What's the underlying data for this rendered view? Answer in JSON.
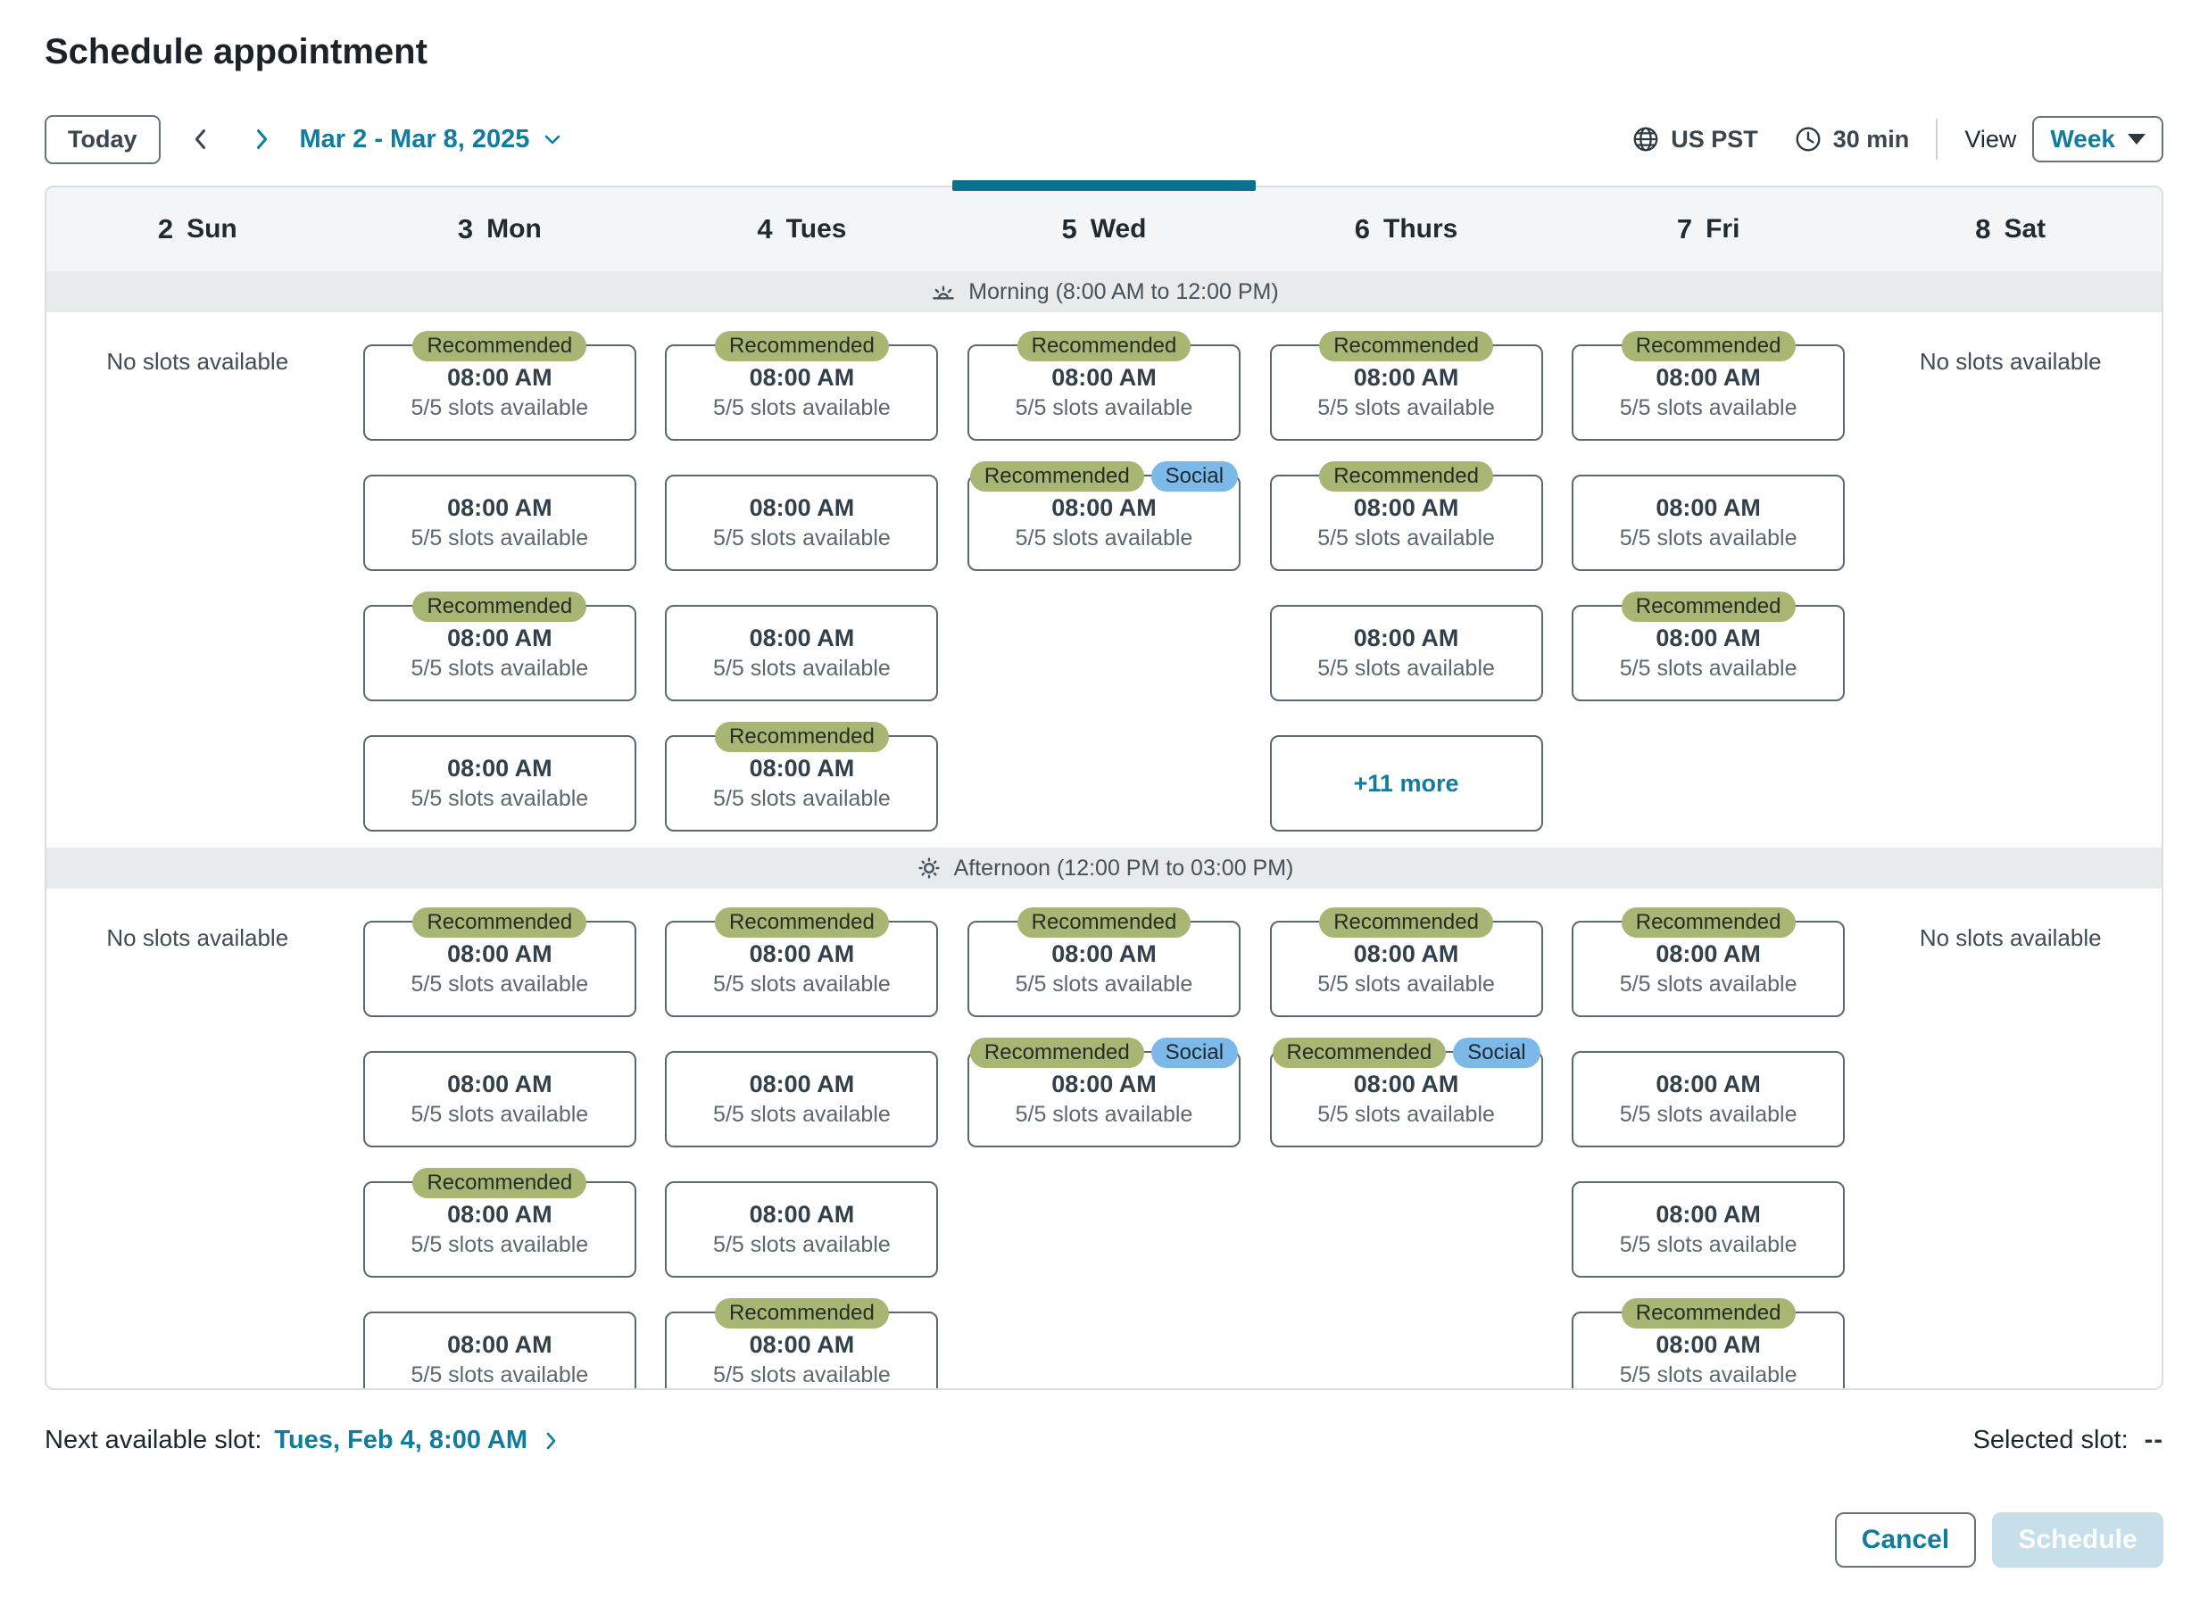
{
  "header": {
    "title": "Schedule appointment"
  },
  "toolbar": {
    "today_label": "Today",
    "date_range": "Mar 2 - Mar 8, 2025",
    "timezone": "US PST",
    "duration": "30 min",
    "view_label": "View",
    "view_value": "Week"
  },
  "days": [
    {
      "num": "2",
      "name": "Sun",
      "selected": false
    },
    {
      "num": "3",
      "name": "Mon",
      "selected": false
    },
    {
      "num": "4",
      "name": "Tues",
      "selected": false
    },
    {
      "num": "5",
      "name": "Wed",
      "selected": true
    },
    {
      "num": "6",
      "name": "Thurs",
      "selected": false
    },
    {
      "num": "7",
      "name": "Fri",
      "selected": false
    },
    {
      "num": "8",
      "name": "Sat",
      "selected": false
    }
  ],
  "sections": [
    {
      "key": "morning",
      "label": "Morning (8:00 AM to 12:00 PM)",
      "icon": "sunrise-icon"
    },
    {
      "key": "afternoon",
      "label": "Afternoon (12:00 PM to 03:00 PM)",
      "icon": "sun-icon"
    }
  ],
  "badges": {
    "recommended": "Recommended",
    "social": "Social"
  },
  "no_slots_label": "No slots available",
  "grid": {
    "morning": [
      {
        "day": "Sun",
        "no_slots": true
      },
      {
        "day": "Mon",
        "slots": [
          {
            "badges": [
              "recommended"
            ],
            "time": "08:00 AM",
            "availability": "5/5 slots available"
          },
          {
            "badges": [],
            "time": "08:00 AM",
            "availability": "5/5 slots available"
          },
          {
            "badges": [
              "recommended"
            ],
            "time": "08:00 AM",
            "availability": "5/5 slots available"
          },
          {
            "badges": [],
            "time": "08:00 AM",
            "availability": "5/5 slots available"
          }
        ]
      },
      {
        "day": "Tues",
        "slots": [
          {
            "badges": [
              "recommended"
            ],
            "time": "08:00 AM",
            "availability": "5/5 slots available"
          },
          {
            "badges": [],
            "time": "08:00 AM",
            "availability": "5/5 slots available"
          },
          {
            "badges": [],
            "time": "08:00 AM",
            "availability": "5/5 slots available"
          },
          {
            "badges": [
              "recommended"
            ],
            "time": "08:00 AM",
            "availability": "5/5 slots available"
          }
        ]
      },
      {
        "day": "Wed",
        "slots": [
          {
            "badges": [
              "recommended"
            ],
            "time": "08:00 AM",
            "availability": "5/5 slots available"
          },
          {
            "badges": [
              "recommended",
              "social"
            ],
            "time": "08:00 AM",
            "availability": "5/5 slots available"
          }
        ]
      },
      {
        "day": "Thurs",
        "slots": [
          {
            "badges": [
              "recommended"
            ],
            "time": "08:00 AM",
            "availability": "5/5 slots available"
          },
          {
            "badges": [
              "recommended"
            ],
            "time": "08:00 AM",
            "availability": "5/5 slots available"
          },
          {
            "badges": [],
            "time": "08:00 AM",
            "availability": "5/5 slots available"
          },
          {
            "more": "+11 more"
          }
        ]
      },
      {
        "day": "Fri",
        "slots": [
          {
            "badges": [
              "recommended"
            ],
            "time": "08:00 AM",
            "availability": "5/5 slots available"
          },
          {
            "badges": [],
            "time": "08:00 AM",
            "availability": "5/5 slots available"
          },
          {
            "badges": [
              "recommended"
            ],
            "time": "08:00 AM",
            "availability": "5/5 slots available"
          }
        ]
      },
      {
        "day": "Sat",
        "no_slots": true
      }
    ],
    "afternoon": [
      {
        "day": "Sun",
        "no_slots": true
      },
      {
        "day": "Mon",
        "slots": [
          {
            "badges": [
              "recommended"
            ],
            "time": "08:00 AM",
            "availability": "5/5 slots available"
          },
          {
            "badges": [],
            "time": "08:00 AM",
            "availability": "5/5 slots available"
          },
          {
            "badges": [
              "recommended"
            ],
            "time": "08:00 AM",
            "availability": "5/5 slots available"
          },
          {
            "badges": [],
            "time": "08:00 AM",
            "availability": "5/5 slots available"
          }
        ]
      },
      {
        "day": "Tues",
        "slots": [
          {
            "badges": [
              "recommended"
            ],
            "time": "08:00 AM",
            "availability": "5/5 slots available"
          },
          {
            "badges": [],
            "time": "08:00 AM",
            "availability": "5/5 slots available"
          },
          {
            "badges": [],
            "time": "08:00 AM",
            "availability": "5/5 slots available"
          },
          {
            "badges": [
              "recommended"
            ],
            "time": "08:00 AM",
            "availability": "5/5 slots available"
          }
        ]
      },
      {
        "day": "Wed",
        "slots": [
          {
            "badges": [
              "recommended"
            ],
            "time": "08:00 AM",
            "availability": "5/5 slots available"
          },
          {
            "badges": [
              "recommended",
              "social"
            ],
            "time": "08:00 AM",
            "availability": "5/5 slots available"
          }
        ]
      },
      {
        "day": "Thurs",
        "slots": [
          {
            "badges": [
              "recommended"
            ],
            "time": "08:00 AM",
            "availability": "5/5 slots available"
          },
          {
            "badges": [
              "recommended",
              "social"
            ],
            "time": "08:00 AM",
            "availability": "5/5 slots available"
          }
        ]
      },
      {
        "day": "Fri",
        "slots": [
          {
            "badges": [
              "recommended"
            ],
            "time": "08:00 AM",
            "availability": "5/5 slots available"
          },
          {
            "badges": [],
            "time": "08:00 AM",
            "availability": "5/5 slots available"
          },
          {
            "badges": [],
            "time": "08:00 AM",
            "availability": "5/5 slots available"
          },
          {
            "badges": [
              "recommended"
            ],
            "time": "08:00 AM",
            "availability": "5/5 slots available"
          }
        ]
      },
      {
        "day": "Sat",
        "no_slots": true
      }
    ]
  },
  "footer": {
    "next_label": "Next available slot:",
    "next_value": "Tues, Feb 4, 8:00 AM",
    "selected_label": "Selected slot:",
    "selected_value": "--",
    "cancel_label": "Cancel",
    "schedule_label": "Schedule"
  },
  "colors": {
    "accent": "#107c9e",
    "selected_day_bar": "#0c7090",
    "recommended_badge": "#a9b572",
    "social_badge": "#7cb9e8",
    "disabled_button": "#c7dfe9"
  }
}
